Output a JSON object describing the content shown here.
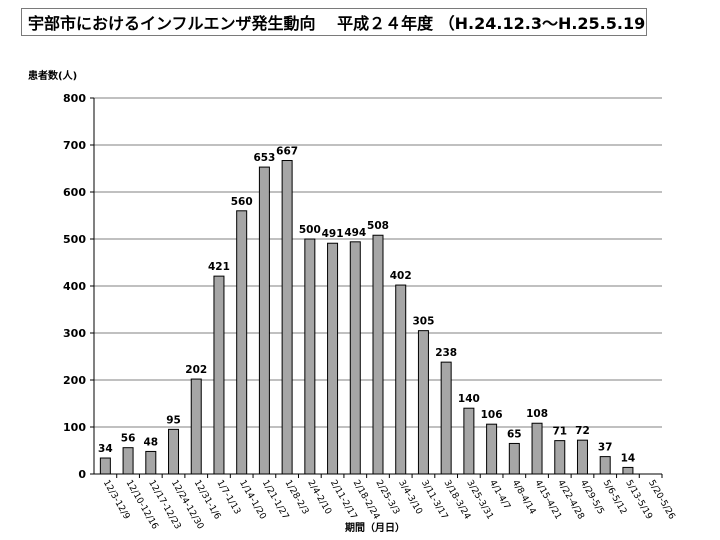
{
  "chart_data": {
    "type": "bar",
    "title": "宇部市におけるインフルエンザ発生動向　 平成２４年度 （H.24.12.3～H.25.5.19)",
    "ylabel": "患者数(人)",
    "xlabel": "期間（月日）",
    "ylim": [
      0,
      800
    ],
    "yticks": [
      0,
      100,
      200,
      300,
      400,
      500,
      600,
      700,
      800
    ],
    "grid": true,
    "bar_color": "#a6a6a6",
    "categories": [
      "12/3-12/9",
      "12/10-12/16",
      "12/17-12/23",
      "12/24-12/30",
      "12/31-1/6",
      "1/7-1/13",
      "1/14-1/20",
      "1/21-1/27",
      "1/28-2/3",
      "2/4-2/10",
      "2/11-2/17",
      "2/18-2/24",
      "2/25-3/3",
      "3/4-3/10",
      "3/11-3/17",
      "3/18-3/24",
      "3/25-3/31",
      "4/1-4/7",
      "4/8-4/14",
      "4/15-4/21",
      "4/22-4/28",
      "4/29-5/5",
      "5/6-5/12",
      "5/13-5/19",
      "5/20-5/26"
    ],
    "values": [
      34,
      56,
      48,
      95,
      202,
      421,
      560,
      653,
      667,
      500,
      491,
      494,
      508,
      402,
      305,
      238,
      140,
      106,
      65,
      108,
      71,
      72,
      37,
      14,
      null
    ]
  }
}
